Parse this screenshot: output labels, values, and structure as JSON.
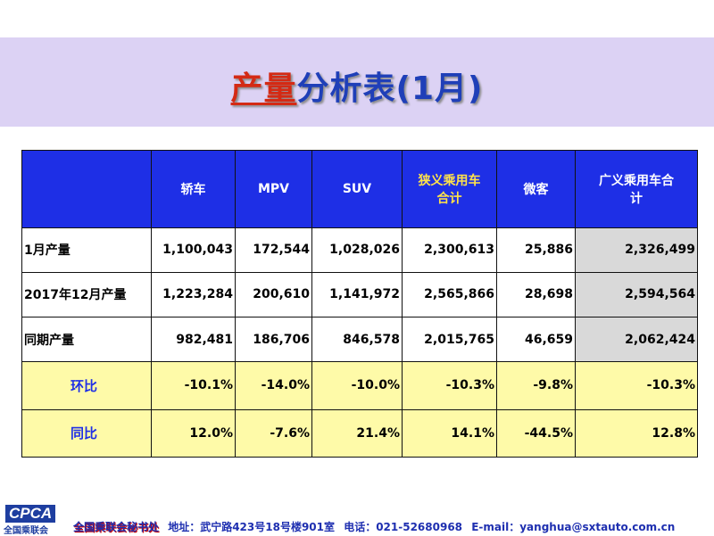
{
  "title": {
    "highlight": "产量",
    "rest": "分析表(1月)"
  },
  "table": {
    "headers": [
      "",
      "轿车",
      "MPV",
      "SUV",
      "狭义乘用车\n合计",
      "微客",
      "广义乘用车合\n计"
    ],
    "rows": [
      {
        "label": "1月产量",
        "values": [
          "1,100,043",
          "172,544",
          "1,028,026",
          "2,300,613",
          "25,886",
          "2,326,499"
        ]
      },
      {
        "label": "2017年12月产量",
        "values": [
          "1,223,284",
          "200,610",
          "1,141,972",
          "2,565,866",
          "28,698",
          "2,594,564"
        ]
      },
      {
        "label": "同期产量",
        "values": [
          "982,481",
          "186,706",
          "846,578",
          "2,015,765",
          "46,659",
          "2,062,424"
        ]
      },
      {
        "label": "环比",
        "values": [
          "-10.1%",
          "-14.0%",
          "-10.0%",
          "-10.3%",
          "-9.8%",
          "-10.3%"
        ]
      },
      {
        "label": "同比",
        "values": [
          "12.0%",
          "-7.6%",
          "21.4%",
          "14.1%",
          "-44.5%",
          "12.8%"
        ]
      }
    ]
  },
  "footer": {
    "logo": "CPCA",
    "logo_sub": "全国乘联会",
    "org": "全国乘联会秘书处",
    "address": "地址：武宁路423号18号楼901室",
    "phone": "电话：021-52680968",
    "email": "E-mail：yanghua@sxtauto.com.cn"
  },
  "colors": {
    "header_bg": "#1e2fe6",
    "header_yellow_text": "#ffe34a",
    "pct_row_bg": "#fefaa8",
    "total_col_bg": "#d9d9d9",
    "negative": "#e00000",
    "positive": "#10a010",
    "title_band": "#dcd2f4"
  }
}
